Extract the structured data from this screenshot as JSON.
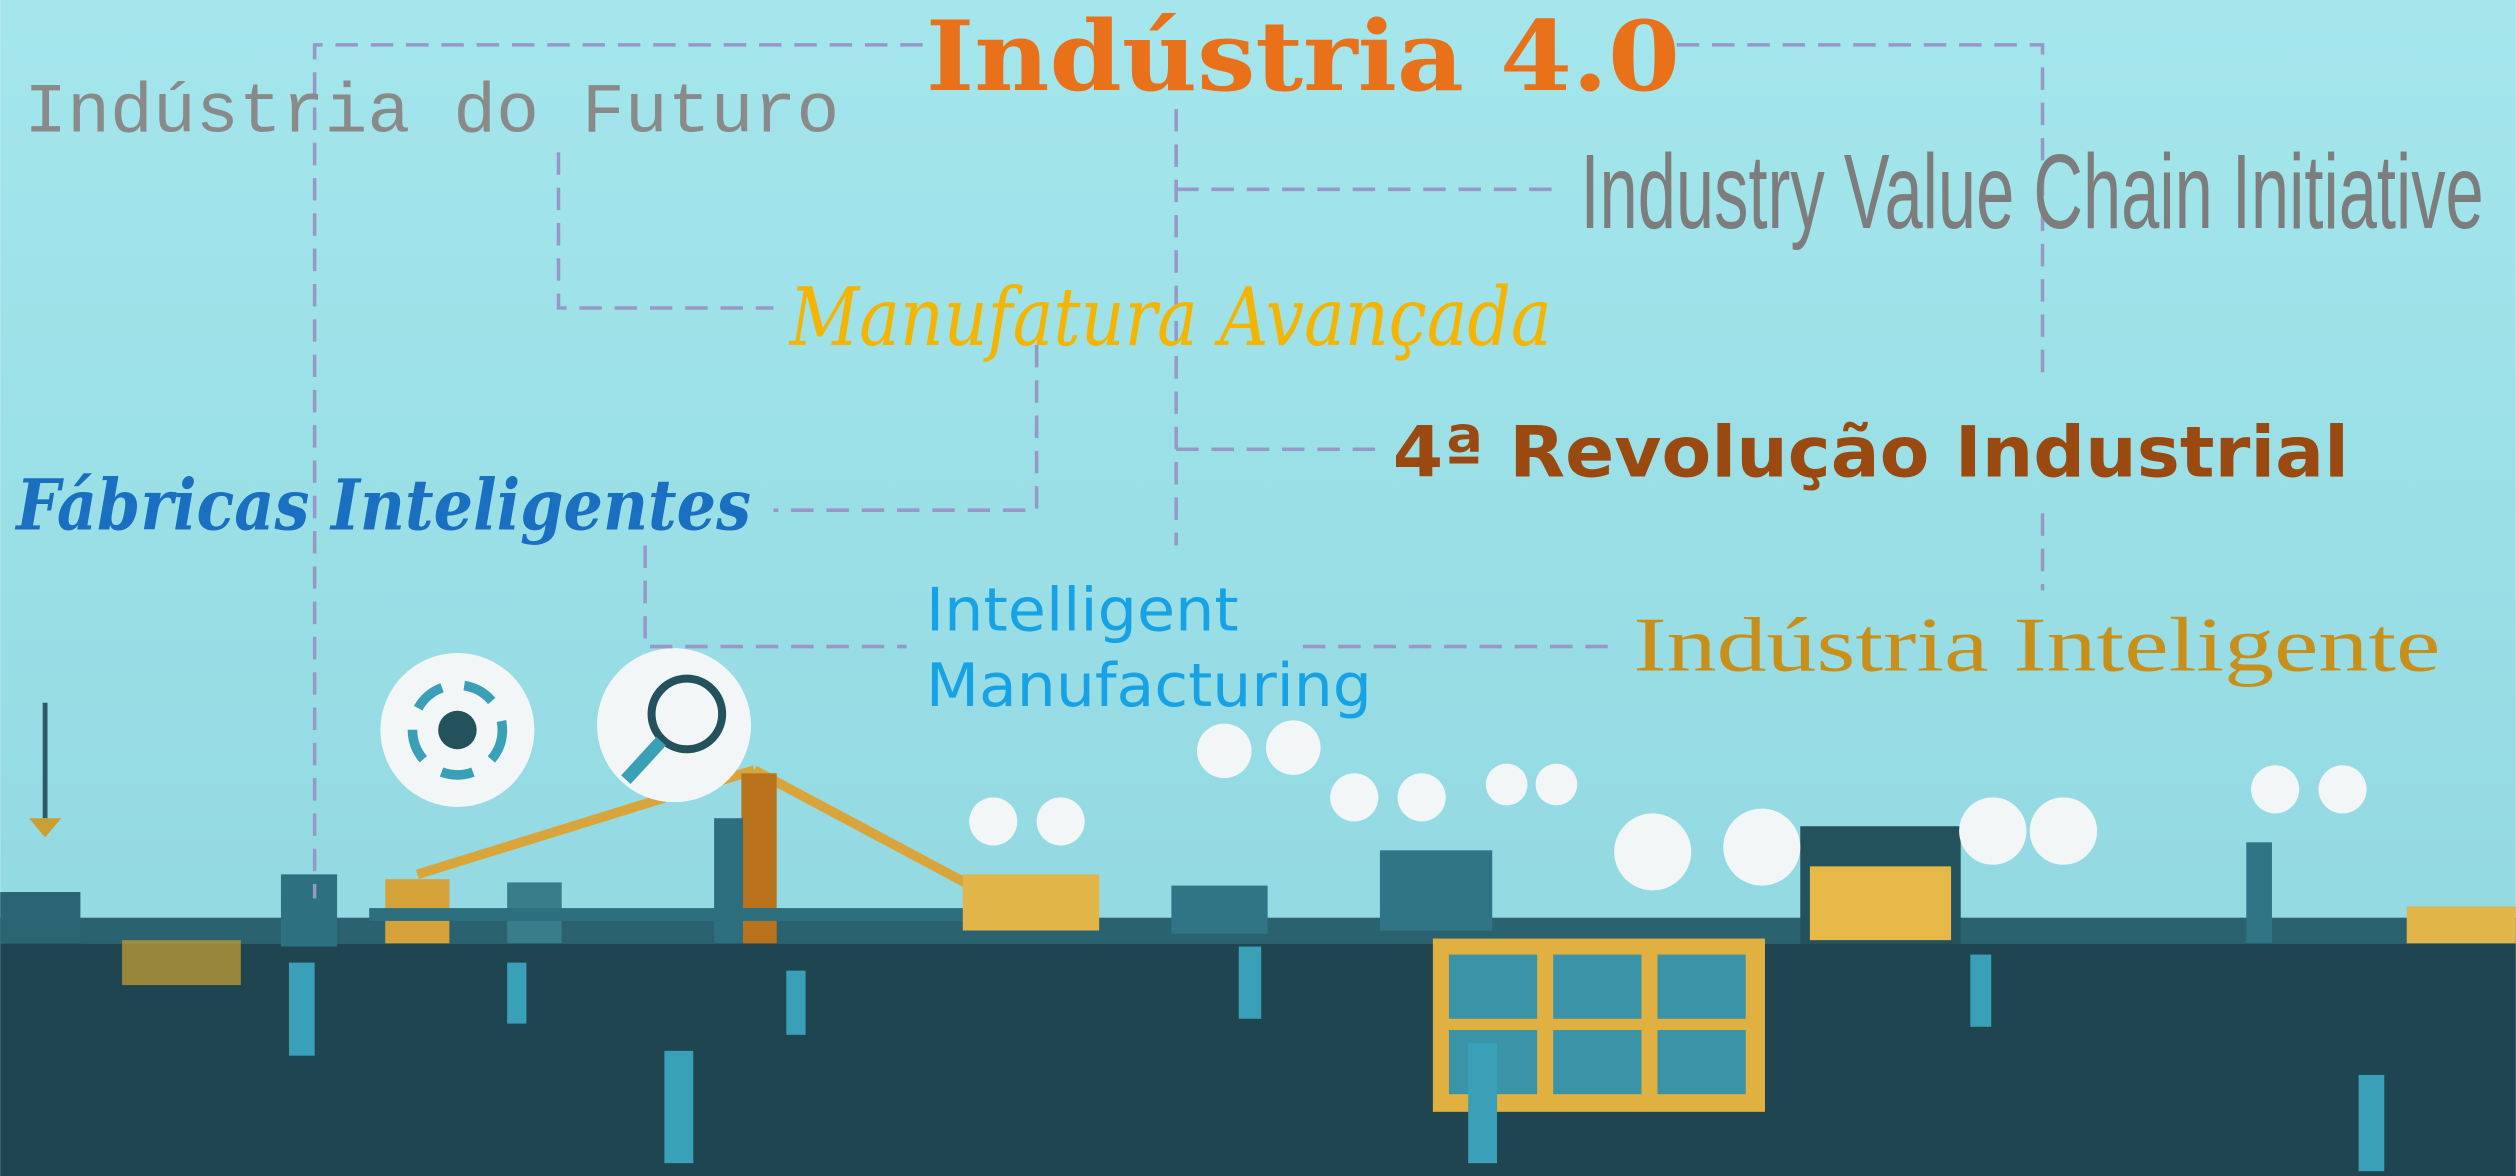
{
  "labels": {
    "main": "Indústria 4.0",
    "futuro": "Indústria do Futuro",
    "ivci": "Industry Value Chain Initiative",
    "manufatura": "Manufatura Avançada",
    "revolucao": "4ª Revolução Industrial",
    "fabricas": "Fábricas Inteligentes",
    "intelligent": [
      "Intelligent",
      "Manufacturing"
    ],
    "inteligente": "Indústria Inteligente"
  }
}
